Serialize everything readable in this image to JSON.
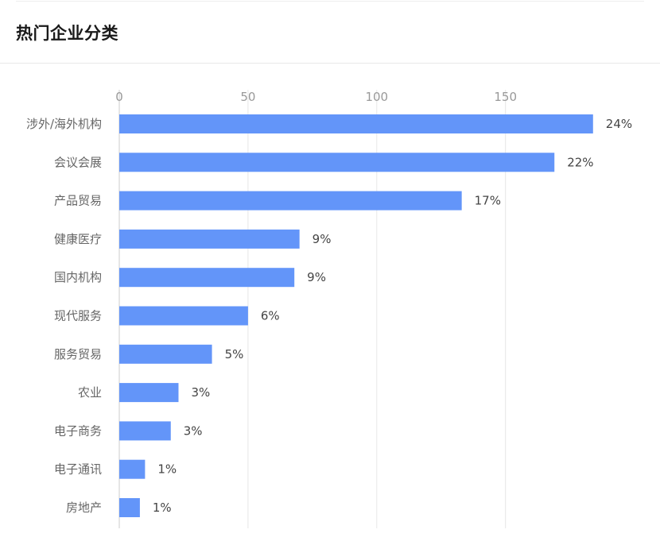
{
  "card": {
    "title": "热门企业分类"
  },
  "chart_data": {
    "type": "bar",
    "orientation": "horizontal",
    "title": "",
    "xlabel": "",
    "ylabel": "",
    "xlim": [
      0,
      185
    ],
    "x_ticks": [
      0,
      50,
      100,
      150
    ],
    "grid": true,
    "bar_color": "#6395f9",
    "categories": [
      "涉外/海外机构",
      "会议会展",
      "产品贸易",
      "健康医疗",
      "国内机构",
      "现代服务",
      "服务贸易",
      "农业",
      "电子商务",
      "电子通讯",
      "房地产"
    ],
    "values": [
      184,
      169,
      133,
      70,
      68,
      50,
      36,
      23,
      20,
      10,
      8
    ],
    "data_labels": [
      "24%",
      "22%",
      "17%",
      "9%",
      "9%",
      "6%",
      "5%",
      "3%",
      "3%",
      "1%",
      "1%"
    ]
  }
}
